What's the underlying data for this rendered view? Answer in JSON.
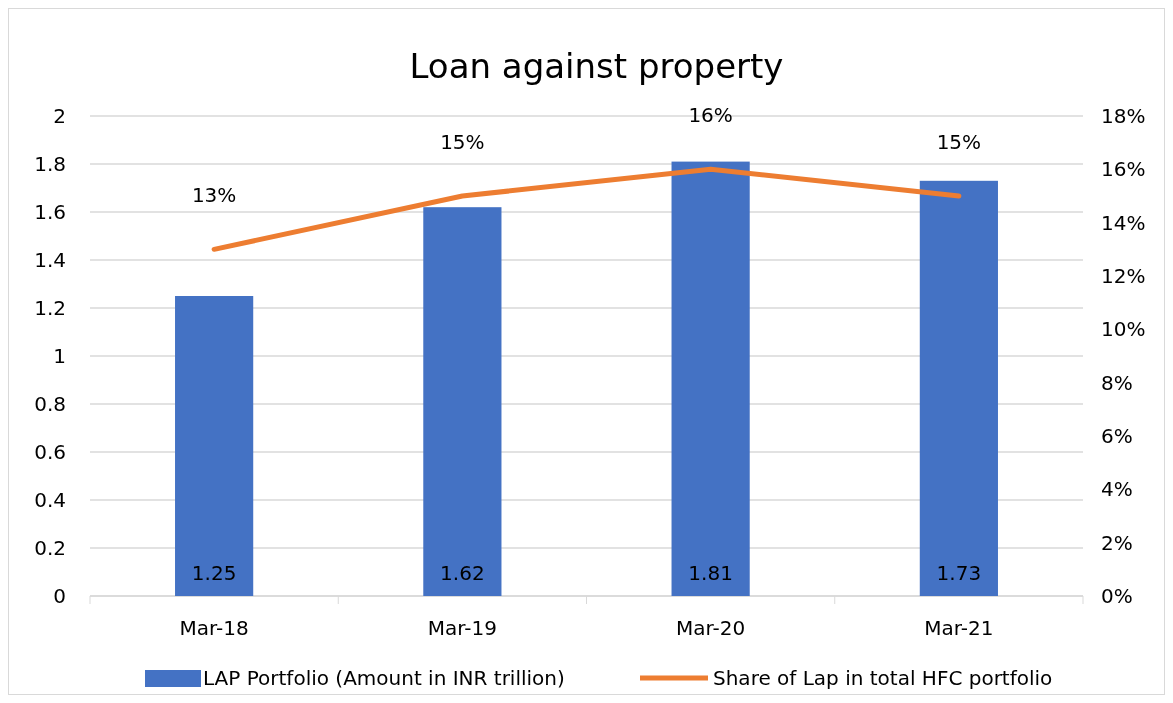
{
  "chart_data": {
    "type": "bar",
    "title": "Loan against property",
    "categories": [
      "Mar-18",
      "Mar-19",
      "Mar-20",
      "Mar-21"
    ],
    "series": [
      {
        "name": "LAP Portfolio (Amount in INR trillion)",
        "color": "#4472c4",
        "values": [
          1.25,
          1.62,
          1.81,
          1.73
        ],
        "value_labels": [
          "1.25",
          "1.62",
          "1.81",
          "1.73"
        ]
      },
      {
        "name": "Share of Lap in total HFC portfolio",
        "type": "line",
        "axis": "y2",
        "color": "#ed7d31",
        "values": [
          13,
          15,
          16,
          15
        ],
        "value_labels": [
          "13%",
          "15%",
          "16%",
          "15%"
        ],
        "marker": "none"
      }
    ],
    "ylim": [
      0,
      2
    ],
    "yticks": [
      0,
      0.2,
      0.4,
      0.6,
      0.8,
      1,
      1.2,
      1.4,
      1.6,
      1.8,
      2
    ],
    "y2lim": [
      0,
      18
    ],
    "y2ticks": [
      {
        "value": 0,
        "label": "0%"
      },
      {
        "value": 2,
        "label": "2%"
      },
      {
        "value": 4,
        "label": "4%"
      },
      {
        "value": 6,
        "label": "6%"
      },
      {
        "value": 8,
        "label": "8%"
      },
      {
        "value": 10,
        "label": "10%"
      },
      {
        "value": 12,
        "label": "12%"
      },
      {
        "value": 14,
        "label": "14%"
      },
      {
        "value": 16,
        "label": "16%"
      },
      {
        "value": 18,
        "label": "18%"
      }
    ],
    "grid": "y",
    "legend": "bottom"
  }
}
